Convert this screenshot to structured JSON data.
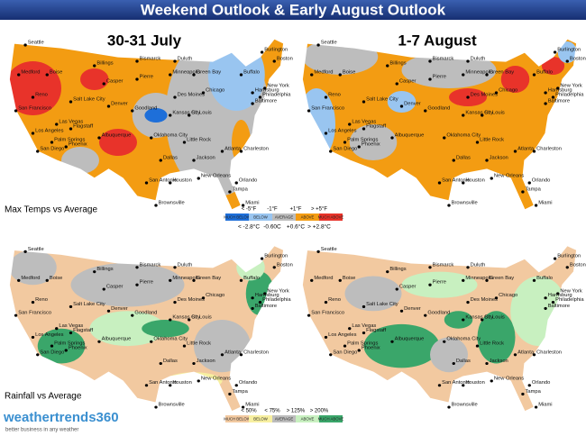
{
  "title": "Weekend Outlook & Early August Outlook",
  "maps": {
    "left_title": "30-31 July",
    "right_title": "1-7 August"
  },
  "rows": [
    {
      "label": "Max Temps vs Average",
      "legend": {
        "top": [
          "< -5°F",
          "-1°F",
          "+1°F",
          "> +5°F"
        ],
        "categories": [
          "MUCH BELOW",
          "BELOW",
          "AVERAGE",
          "ABOVE",
          "MUCH ABOVE"
        ],
        "bottom": [
          "< -2.8°C",
          "-0.60C",
          "+0.6°C",
          "> +2.8°C"
        ]
      }
    },
    {
      "label": "Rainfall vs Average",
      "legend": {
        "top": [
          "< 50%",
          "< 75%",
          "> 125%",
          "> 200%"
        ],
        "categories": [
          "MUCH BELOW",
          "BELOW",
          "AVERAGE",
          "ABOVE",
          "MUCH ABOVE"
        ]
      }
    }
  ],
  "cities": [
    "Seattle",
    "Medford",
    "Boise",
    "Reno",
    "San Francisco",
    "Las Vegas",
    "Los Angeles",
    "San Diego",
    "Palm Springs",
    "Phoenix",
    "Flagstaff",
    "Salt Lake City",
    "Billings",
    "Casper",
    "Denver",
    "Albuquerque",
    "Bismarck",
    "Pierre",
    "Goodland",
    "Oklahoma City",
    "Dallas",
    "San Antonio",
    "Houston",
    "Brownsville",
    "Duluth",
    "Minneapolis",
    "Green Bay",
    "Des Moines",
    "Kansas City",
    "St. Louis",
    "Chicago",
    "Little Rock",
    "Jackson",
    "New Orleans",
    "Atlanta",
    "Charleston",
    "Orlando",
    "Tampa",
    "Miami",
    "Harrisburg",
    "Philadelphia",
    "New York",
    "Baltimore",
    "Boston",
    "Burlington",
    "Buffalo"
  ],
  "logo": {
    "name": "weathertrends360",
    "tagline": "better business in any weather"
  }
}
